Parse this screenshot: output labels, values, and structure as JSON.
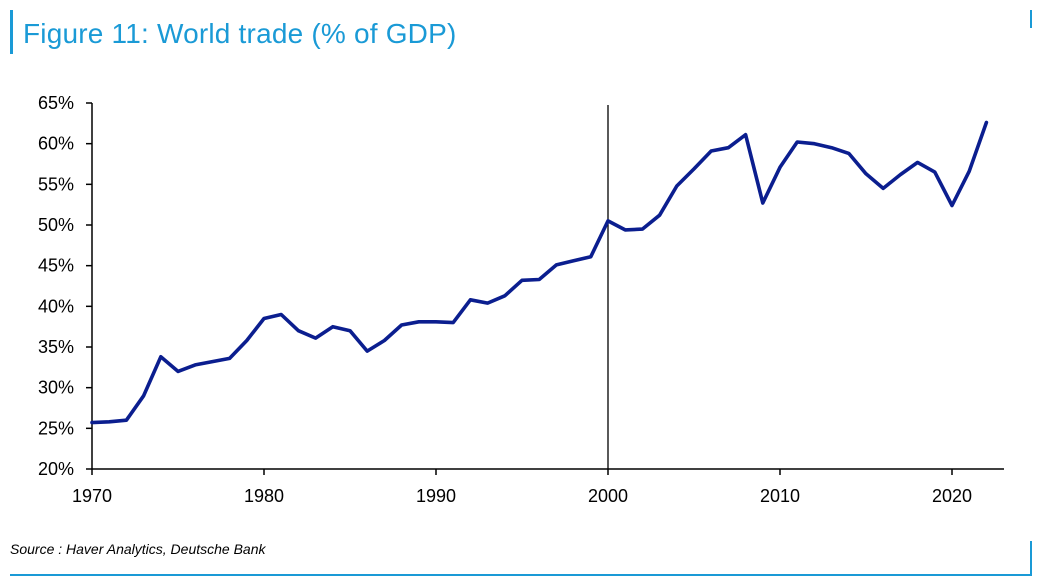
{
  "header": {
    "title": "Figure 11: World trade (% of GDP)"
  },
  "footer": {
    "source": "Source : Haver Analytics, Deutsche Bank"
  },
  "chart_data": {
    "type": "line",
    "title": "Figure 11: World trade (% of GDP)",
    "xlabel": "",
    "ylabel": "",
    "xlim": [
      1970,
      2023
    ],
    "ylim": [
      20,
      65
    ],
    "x_ticks": [
      1970,
      1980,
      1990,
      2000,
      2010,
      2020
    ],
    "y_ticks": [
      20,
      25,
      30,
      35,
      40,
      45,
      50,
      55,
      60,
      65
    ],
    "y_tick_labels": [
      "20%",
      "25%",
      "30%",
      "35%",
      "40%",
      "45%",
      "50%",
      "55%",
      "60%",
      "65%"
    ],
    "vertical_marker": 2000,
    "grid": false,
    "legend": "none",
    "series": [
      {
        "name": "World trade (% of GDP)",
        "color": "#0b1e8f",
        "x": [
          1970,
          1971,
          1972,
          1973,
          1974,
          1975,
          1976,
          1977,
          1978,
          1979,
          1980,
          1981,
          1982,
          1983,
          1984,
          1985,
          1986,
          1987,
          1988,
          1989,
          1990,
          1991,
          1992,
          1993,
          1994,
          1995,
          1996,
          1997,
          1998,
          1999,
          2000,
          2001,
          2002,
          2003,
          2004,
          2005,
          2006,
          2007,
          2008,
          2009,
          2010,
          2011,
          2012,
          2013,
          2014,
          2015,
          2016,
          2017,
          2018,
          2019,
          2020,
          2021,
          2022
        ],
        "values": [
          25.7,
          25.8,
          26.0,
          29.0,
          33.8,
          32.0,
          32.8,
          33.2,
          33.6,
          35.8,
          38.5,
          39.0,
          37.0,
          36.1,
          37.5,
          37.0,
          34.5,
          35.8,
          37.7,
          38.1,
          38.1,
          38.0,
          40.8,
          40.4,
          41.3,
          43.2,
          43.3,
          45.1,
          45.6,
          46.1,
          50.5,
          49.4,
          49.5,
          51.2,
          54.8,
          56.9,
          59.1,
          59.5,
          61.1,
          52.7,
          57.1,
          60.2,
          60.0,
          59.5,
          58.8,
          56.3,
          54.5,
          56.2,
          57.7,
          56.5,
          52.4,
          56.6,
          62.6
        ]
      }
    ]
  }
}
